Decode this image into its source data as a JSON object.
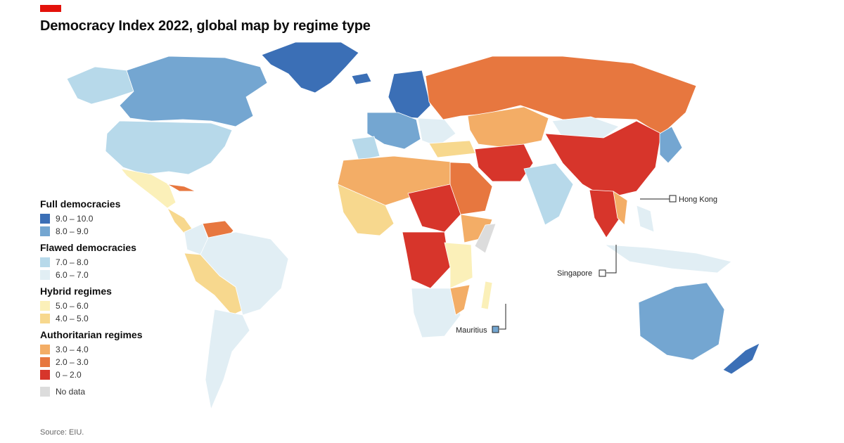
{
  "title": "Democracy Index 2022, global map by regime type",
  "brand_color": "#e3120b",
  "legend": [
    {
      "heading": "Full democracies",
      "items": [
        {
          "label": "9.0 – 10.0",
          "color": "#3b6fb6"
        },
        {
          "label": "8.0 – 9.0",
          "color": "#74a6d1"
        }
      ]
    },
    {
      "heading": "Flawed democracies",
      "items": [
        {
          "label": "7.0 – 8.0",
          "color": "#b7d9ea"
        },
        {
          "label": "6.0 – 7.0",
          "color": "#e1eef4"
        }
      ]
    },
    {
      "heading": "Hybrid regimes",
      "items": [
        {
          "label": "5.0 – 6.0",
          "color": "#fbf0b9"
        },
        {
          "label": "4.0 – 5.0",
          "color": "#f7d88e"
        }
      ]
    },
    {
      "heading": "Authoritarian regimes",
      "items": [
        {
          "label": "3.0 – 4.0",
          "color": "#f3ad66"
        },
        {
          "label": "2.0 – 3.0",
          "color": "#e7773f"
        },
        {
          "label": "0 – 2.0",
          "color": "#d7352b"
        }
      ]
    }
  ],
  "no_data": {
    "label": "No data",
    "color": "#dcdcdc"
  },
  "callouts": {
    "hong_kong": "Hong Kong",
    "singapore": "Singapore",
    "mauritius": "Mauritius"
  },
  "source": "Source: EIU."
}
